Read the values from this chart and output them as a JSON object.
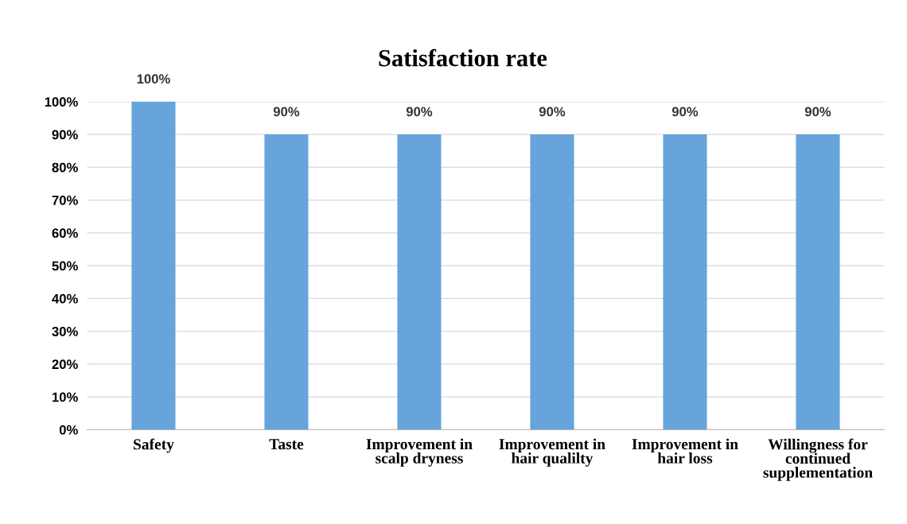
{
  "chart_data": {
    "type": "bar",
    "title": "Satisfaction rate",
    "categories": [
      "Safety",
      "Taste",
      "Improvement in\nscalp dryness",
      "Improvement in\nhair qualilty",
      "Improvement in\nhair loss",
      "Willingness for\ncontinued\nsupplementation"
    ],
    "values": [
      100,
      90,
      90,
      90,
      90,
      90
    ],
    "value_labels": [
      "100%",
      "90%",
      "90%",
      "90%",
      "90%",
      "90%"
    ],
    "color": "#67a4db",
    "ylim": [
      0,
      100
    ],
    "yticks": [
      {
        "value": 0,
        "label": "0%"
      },
      {
        "value": 10,
        "label": "10%"
      },
      {
        "value": 20,
        "label": "20%"
      },
      {
        "value": 30,
        "label": "30%"
      },
      {
        "value": 40,
        "label": "40%"
      },
      {
        "value": 50,
        "label": "50%"
      },
      {
        "value": 60,
        "label": "60%"
      },
      {
        "value": 70,
        "label": "70%"
      },
      {
        "value": 80,
        "label": "80%"
      },
      {
        "value": 90,
        "label": "90%"
      },
      {
        "value": 100,
        "label": "100%"
      }
    ],
    "grid": "y",
    "legend": false
  }
}
